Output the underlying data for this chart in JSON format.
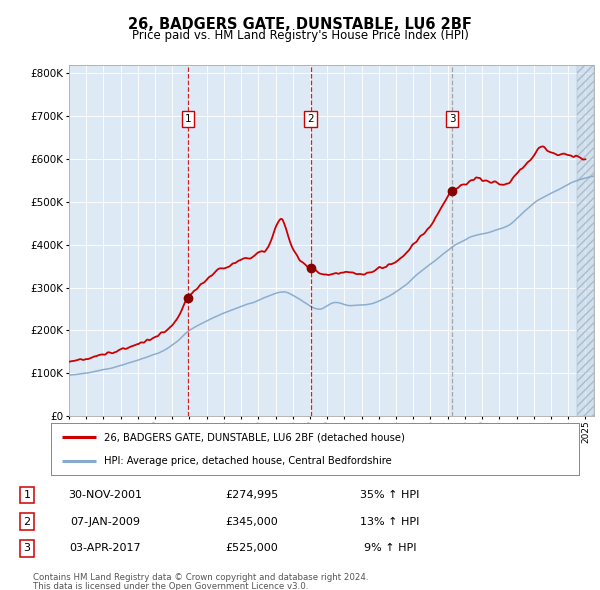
{
  "title": "26, BADGERS GATE, DUNSTABLE, LU6 2BF",
  "subtitle": "Price paid vs. HM Land Registry's House Price Index (HPI)",
  "legend_line1": "26, BADGERS GATE, DUNSTABLE, LU6 2BF (detached house)",
  "legend_line2": "HPI: Average price, detached house, Central Bedfordshire",
  "footer1": "Contains HM Land Registry data © Crown copyright and database right 2024.",
  "footer2": "This data is licensed under the Open Government Licence v3.0.",
  "sales": [
    {
      "num": 1,
      "date": "30-NOV-2001",
      "price": 274995,
      "pct": "35%",
      "dir": "↑"
    },
    {
      "num": 2,
      "date": "07-JAN-2009",
      "price": 345000,
      "pct": "13%",
      "dir": "↑"
    },
    {
      "num": 3,
      "date": "03-APR-2017",
      "price": 525000,
      "pct": "9%",
      "dir": "↑"
    }
  ],
  "sale_years": [
    2001.92,
    2009.03,
    2017.26
  ],
  "sale_prices": [
    274995,
    345000,
    525000
  ],
  "bg_color": "#ddeaf5",
  "red_line_color": "#cc0000",
  "blue_line_color": "#88aacc",
  "ylim": [
    0,
    820000
  ],
  "yticks": [
    0,
    100000,
    200000,
    300000,
    400000,
    500000,
    600000,
    700000,
    800000
  ],
  "xlim_start": 1995.0,
  "xlim_end": 2025.5,
  "hpi_knots": [
    [
      1995.0,
      95000
    ],
    [
      1997.0,
      108000
    ],
    [
      1999.0,
      130000
    ],
    [
      2001.0,
      165000
    ],
    [
      2002.0,
      200000
    ],
    [
      2004.0,
      240000
    ],
    [
      2006.0,
      270000
    ],
    [
      2007.5,
      290000
    ],
    [
      2008.5,
      270000
    ],
    [
      2009.5,
      250000
    ],
    [
      2010.5,
      265000
    ],
    [
      2011.5,
      258000
    ],
    [
      2012.5,
      262000
    ],
    [
      2013.5,
      278000
    ],
    [
      2014.5,
      305000
    ],
    [
      2015.5,
      340000
    ],
    [
      2016.5,
      370000
    ],
    [
      2017.5,
      400000
    ],
    [
      2018.5,
      420000
    ],
    [
      2019.5,
      430000
    ],
    [
      2020.5,
      445000
    ],
    [
      2021.5,
      480000
    ],
    [
      2022.5,
      510000
    ],
    [
      2023.5,
      530000
    ],
    [
      2024.5,
      550000
    ],
    [
      2025.5,
      560000
    ]
  ],
  "prop_knots": [
    [
      1995.0,
      128000
    ],
    [
      1996.5,
      138000
    ],
    [
      1998.0,
      155000
    ],
    [
      1999.5,
      175000
    ],
    [
      2001.0,
      210000
    ],
    [
      2001.92,
      274995
    ],
    [
      2002.5,
      300000
    ],
    [
      2003.5,
      335000
    ],
    [
      2005.0,
      365000
    ],
    [
      2006.5,
      390000
    ],
    [
      2007.3,
      460000
    ],
    [
      2008.0,
      390000
    ],
    [
      2009.03,
      345000
    ],
    [
      2010.0,
      330000
    ],
    [
      2011.0,
      335000
    ],
    [
      2012.0,
      330000
    ],
    [
      2013.0,
      345000
    ],
    [
      2014.0,
      360000
    ],
    [
      2015.0,
      400000
    ],
    [
      2016.0,
      445000
    ],
    [
      2017.26,
      525000
    ],
    [
      2018.0,
      540000
    ],
    [
      2018.8,
      555000
    ],
    [
      2019.5,
      545000
    ],
    [
      2020.3,
      540000
    ],
    [
      2021.0,
      565000
    ],
    [
      2021.8,
      600000
    ],
    [
      2022.5,
      630000
    ],
    [
      2023.0,
      615000
    ],
    [
      2023.8,
      610000
    ],
    [
      2024.5,
      605000
    ],
    [
      2025.0,
      600000
    ]
  ]
}
